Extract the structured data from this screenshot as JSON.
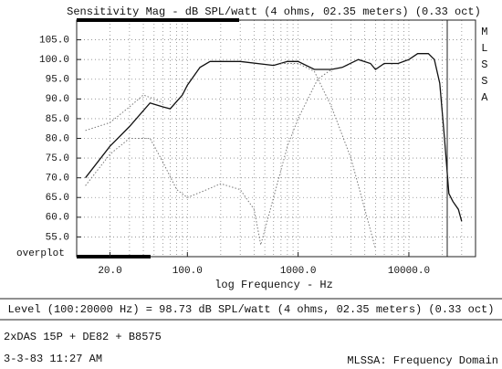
{
  "chart_data": {
    "type": "line",
    "title": "Sensitivity Mag - dB SPL/watt (4 ohms, 02.35 meters) (0.33 oct)",
    "side_label": "MLSSA",
    "overplot_label": "overplot",
    "x_label": "log Frequency - Hz",
    "log_x": true,
    "grid": true,
    "xlim": [
      10,
      40000
    ],
    "ylim": [
      50,
      110
    ],
    "xticks": [
      {
        "value": 20,
        "label": "20.0"
      },
      {
        "value": 100,
        "label": "100.0"
      },
      {
        "value": 1000,
        "label": "1000.0"
      },
      {
        "value": 10000,
        "label": "10000.0"
      }
    ],
    "yticks": [
      {
        "value": 55,
        "label": "55.0"
      },
      {
        "value": 60,
        "label": "60.0"
      },
      {
        "value": 65,
        "label": "65.0"
      },
      {
        "value": 70,
        "label": "70.0"
      },
      {
        "value": 75,
        "label": "75.0"
      },
      {
        "value": 80,
        "label": "80.0"
      },
      {
        "value": 85,
        "label": "85.0"
      },
      {
        "value": 90,
        "label": "90.0"
      },
      {
        "value": 95,
        "label": "95.0"
      },
      {
        "value": 100,
        "label": "100.0"
      },
      {
        "value": 105,
        "label": "105.0"
      }
    ],
    "series": [
      {
        "color": "#111111",
        "line_style": "solid",
        "x": [
          12,
          20,
          30,
          46,
          60,
          70,
          90,
          100,
          130,
          160,
          300,
          600,
          800,
          1000,
          1400,
          2000,
          2500,
          3500,
          4500,
          5000,
          6000,
          8000,
          10000,
          12000,
          15000,
          17000,
          19000,
          21000,
          23000,
          25000,
          28000,
          30000
        ],
        "values": [
          70,
          78,
          83,
          89,
          88,
          87.5,
          91,
          93.5,
          98,
          99.5,
          99.5,
          98.5,
          99.5,
          99.5,
          97.5,
          97.5,
          98,
          100,
          99,
          97.5,
          99,
          99,
          100,
          101.5,
          101.5,
          100,
          94,
          80,
          66,
          64,
          62,
          59
        ]
      },
      {
        "color": "#777777",
        "line_style": "dotted",
        "x": [
          12,
          20,
          30,
          40,
          50,
          60
        ],
        "values": [
          82,
          84,
          88,
          91,
          90,
          89
        ]
      },
      {
        "color": "#777777",
        "line_style": "dotted",
        "x": [
          12,
          20,
          30,
          46,
          60,
          80,
          100,
          150,
          200,
          300,
          400,
          460,
          600,
          800,
          1000,
          1500,
          2000
        ],
        "values": [
          68,
          76,
          80,
          80,
          74,
          67,
          65,
          67,
          68.5,
          67,
          62,
          53,
          65,
          78,
          85,
          95,
          97.5
        ]
      },
      {
        "color": "#777777",
        "line_style": "dotted",
        "x": [
          700,
          1000,
          1400,
          2000,
          3000,
          4000,
          5000
        ],
        "values": [
          99,
          99,
          97,
          88,
          75,
          62,
          52
        ]
      }
    ],
    "footer": {
      "level": "Level (100:20000 Hz) = 98.73 dB SPL/watt (4 ohms, 02.35 meters) (0.33 oct)",
      "config": "2xDAS 15P + DE82 + B8575",
      "timestamp": "3-3-83 11:27 AM",
      "mode": "MLSSA: Frequency Domain"
    }
  }
}
